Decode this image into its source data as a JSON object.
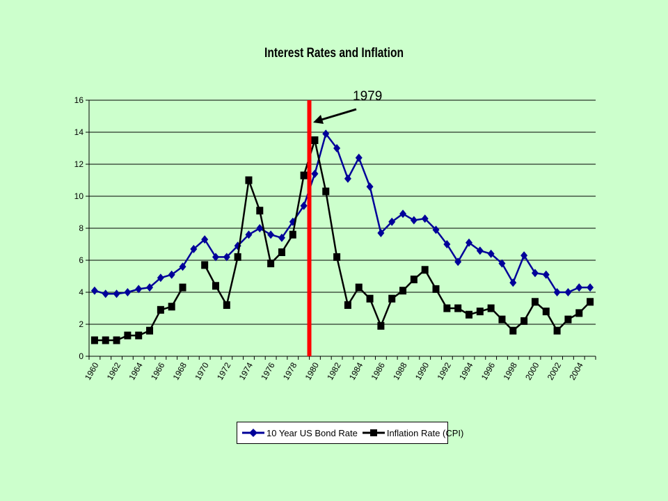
{
  "chart_data": {
    "type": "line",
    "title": "Interest Rates and Inflation",
    "x": [
      1960,
      1961,
      1962,
      1963,
      1964,
      1965,
      1966,
      1967,
      1968,
      1969,
      1970,
      1971,
      1972,
      1973,
      1974,
      1975,
      1976,
      1977,
      1978,
      1979,
      1980,
      1981,
      1982,
      1983,
      1984,
      1985,
      1986,
      1987,
      1988,
      1989,
      1990,
      1991,
      1992,
      1993,
      1994,
      1995,
      1996,
      1997,
      1998,
      1999,
      2000,
      2001,
      2002,
      2003,
      2004,
      2005
    ],
    "x_tick_labels": [
      "1960",
      "1962",
      "1964",
      "1966",
      "1968",
      "1970",
      "1972",
      "1974",
      "1976",
      "1978",
      "1980",
      "1982",
      "1984",
      "1986",
      "1988",
      "1990",
      "1992",
      "1994",
      "1996",
      "1998",
      "2000",
      "2002",
      "2004"
    ],
    "y_tick_labels": [
      "0",
      "2",
      "4",
      "6",
      "8",
      "10",
      "12",
      "14",
      "16"
    ],
    "ylim": [
      0,
      16
    ],
    "grid": "horizontal",
    "legend_position": "bottom",
    "series": [
      {
        "name": "10 Year US Bond Rate",
        "color": "#000099",
        "marker": "diamond",
        "values": [
          4.1,
          3.9,
          3.9,
          4.0,
          4.2,
          4.3,
          4.9,
          5.1,
          5.6,
          6.7,
          7.3,
          6.2,
          6.2,
          6.9,
          7.6,
          8.0,
          7.6,
          7.4,
          8.4,
          9.4,
          11.4,
          13.9,
          13.0,
          11.1,
          12.4,
          10.6,
          7.7,
          8.4,
          8.9,
          8.5,
          8.6,
          7.9,
          7.0,
          5.9,
          7.1,
          6.6,
          6.4,
          5.8,
          4.6,
          6.3,
          5.2,
          5.1,
          4.0,
          4.0,
          4.3,
          4.3
        ]
      },
      {
        "name": "Inflation Rate (CPI)",
        "color": "#000000",
        "marker": "square",
        "values": [
          1.0,
          1.0,
          1.0,
          1.3,
          1.3,
          1.6,
          2.9,
          3.1,
          4.3,
          null,
          5.7,
          4.4,
          3.2,
          6.2,
          11.0,
          9.1,
          5.8,
          6.5,
          7.6,
          11.3,
          13.5,
          10.3,
          6.2,
          3.2,
          4.3,
          3.6,
          1.9,
          3.6,
          4.1,
          4.8,
          5.4,
          4.2,
          3.0,
          3.0,
          2.6,
          2.8,
          3.0,
          2.3,
          1.6,
          2.2,
          3.4,
          2.8,
          1.6,
          2.3,
          2.7,
          3.4
        ]
      }
    ],
    "annotations": [
      {
        "text": "1979",
        "x": 1979.5,
        "color": "#ff0000",
        "style": "vertical-line-with-arrow"
      }
    ]
  }
}
